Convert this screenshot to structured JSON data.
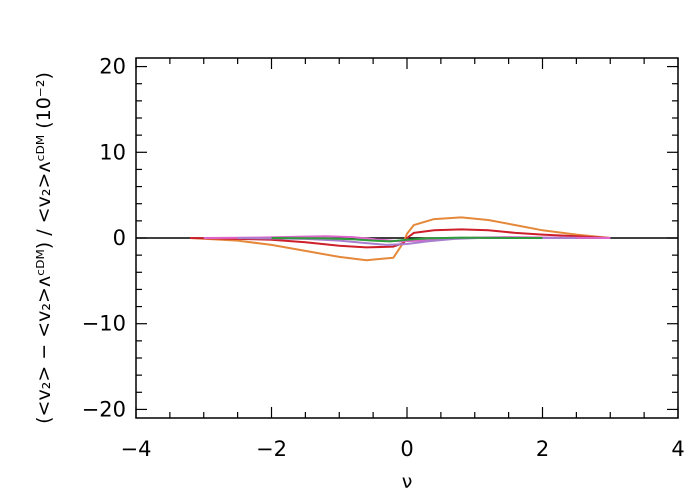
{
  "chart_data": {
    "type": "line",
    "title": "",
    "xlabel": "ν",
    "ylabel": "(<v₂> − <v₂>ᴧᶜᴰᴹ) / <v₂>ᴧᶜᴰᴹ (10⁻²)",
    "xlim": [
      -4,
      4
    ],
    "ylim": [
      -21,
      21
    ],
    "x_ticks": [
      -4,
      -2,
      0,
      2,
      4
    ],
    "y_ticks": [
      -20,
      -10,
      0,
      10,
      20
    ],
    "x_tick_labels": [
      "−4",
      "−2",
      "0",
      "2",
      "4"
    ],
    "y_tick_labels": [
      "−20",
      "−10",
      "0",
      "10",
      "20"
    ],
    "grid": false,
    "legend": "none",
    "zero_line": true,
    "series": [
      {
        "color": "#e5883a",
        "x": [
          -3.2,
          -2.5,
          -2.0,
          -1.5,
          -1.0,
          -0.6,
          -0.2,
          -0.05,
          0.0,
          0.1,
          0.4,
          0.8,
          1.2,
          1.6,
          2.0,
          2.5,
          3.0
        ],
        "y": [
          0.0,
          -0.3,
          -0.8,
          -1.5,
          -2.2,
          -2.6,
          -2.3,
          -0.5,
          0.5,
          1.5,
          2.2,
          2.4,
          2.1,
          1.5,
          0.9,
          0.4,
          0.0
        ]
      },
      {
        "color": "#cc1f2a",
        "x": [
          -3.2,
          -2.5,
          -2.0,
          -1.5,
          -1.0,
          -0.6,
          -0.2,
          -0.05,
          0.0,
          0.1,
          0.4,
          0.8,
          1.2,
          1.6,
          2.0,
          2.5,
          3.0
        ],
        "y": [
          0.0,
          -0.1,
          -0.2,
          -0.5,
          -0.9,
          -1.1,
          -1.0,
          -0.6,
          0.0,
          0.6,
          0.9,
          1.0,
          0.9,
          0.6,
          0.4,
          0.2,
          0.0
        ]
      },
      {
        "color": "#dd66cc",
        "x": [
          -3.0,
          -2.2,
          -1.6,
          -1.2,
          -0.8,
          -0.4,
          -0.1,
          0.2,
          0.6,
          1.0,
          1.5,
          2.2,
          3.0
        ],
        "y": [
          0.0,
          0.05,
          0.15,
          0.2,
          0.1,
          -0.2,
          -0.4,
          -0.3,
          -0.1,
          0.05,
          0.1,
          0.05,
          0.0
        ]
      },
      {
        "color": "#a87fcf",
        "x": [
          -2.5,
          -1.5,
          -1.0,
          -0.6,
          -0.3,
          0.0,
          0.3,
          0.7,
          1.2,
          2.0,
          2.5
        ],
        "y": [
          0.0,
          -0.1,
          -0.3,
          -0.6,
          -0.8,
          -0.7,
          -0.4,
          -0.1,
          0.05,
          0.0,
          0.0
        ]
      },
      {
        "color": "#2e9c3a",
        "x": [
          -2.0,
          -1.2,
          -0.8,
          -0.5,
          -0.25,
          0.0,
          0.3,
          0.8,
          1.5,
          2.0
        ],
        "y": [
          0.0,
          -0.05,
          -0.15,
          -0.3,
          -0.4,
          -0.2,
          -0.05,
          0.05,
          0.0,
          0.0
        ]
      }
    ]
  }
}
